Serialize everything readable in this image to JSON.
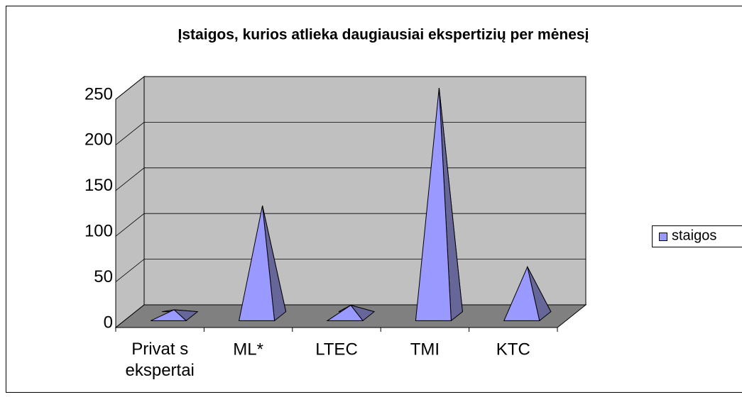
{
  "chart_data": {
    "type": "pyramid3d",
    "title": "Įstaigos, kurios atlieka daugiausiai ekspertizių per mėnesį",
    "categories": [
      "Privat s ekspertai",
      "ML*",
      "LTEC",
      "TMI",
      "KTC"
    ],
    "series": [
      {
        "name": "staigos",
        "color": "#9999ff",
        "values": [
          7,
          121,
          12,
          250,
          54
        ]
      }
    ],
    "ylim": [
      0,
      250
    ],
    "yticks": [
      0,
      50,
      100,
      150,
      200,
      250
    ],
    "grid": true,
    "legend": "right"
  }
}
